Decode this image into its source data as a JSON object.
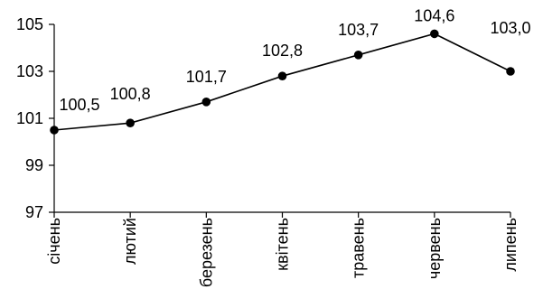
{
  "chart_data": {
    "type": "line",
    "categories": [
      "січень",
      "лютий",
      "березень",
      "квітень",
      "травень",
      "червень",
      "липень"
    ],
    "series": [
      {
        "values": [
          100.5,
          100.8,
          101.7,
          102.8,
          103.7,
          104.6,
          103.0
        ]
      }
    ],
    "data_labels": [
      "100,5",
      "100,8",
      "101,7",
      "102,8",
      "103,7",
      "104,6",
      "103,0"
    ],
    "ylim": [
      97,
      105
    ],
    "yticks": [
      97,
      99,
      101,
      103,
      105
    ],
    "ytick_labels": [
      "97",
      "99",
      "101",
      "103",
      "105"
    ],
    "grid": false,
    "legend": "none",
    "line_color": "#000000",
    "marker": "circle"
  }
}
